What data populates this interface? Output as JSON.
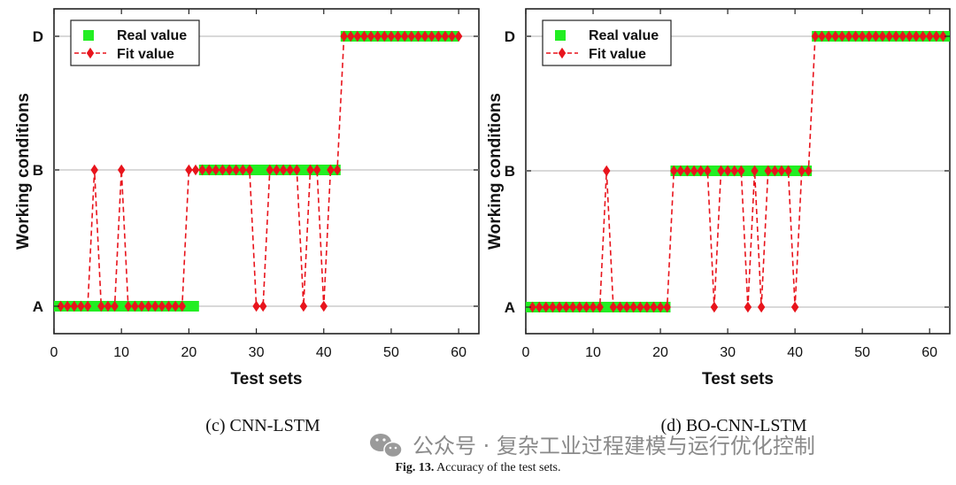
{
  "chart_data": [
    {
      "type": "line",
      "panel_caption": "(c) CNN-LSTM",
      "xlabel": "Test sets",
      "ylabel": "Working conditions",
      "xlim": [
        0,
        63
      ],
      "xticks": [
        "0",
        "10",
        "20",
        "30",
        "40",
        "50",
        "60"
      ],
      "ycategories": [
        "A",
        "B",
        "D"
      ],
      "legend": {
        "real": "Real value",
        "fit": "Fit value",
        "placement": "top-left"
      },
      "colors": {
        "real": "#22ee22",
        "fit": "#e8141c",
        "grid": "#d9d9d9"
      },
      "real": [
        {
          "x_start": 0,
          "x_end": 21.5,
          "class": "A"
        },
        {
          "x_start": 21.5,
          "x_end": 42.5,
          "class": "B"
        },
        {
          "x_start": 42.5,
          "x_end": 60,
          "class": "D"
        }
      ],
      "x_start": 1,
      "fit": [
        "A",
        "A",
        "A",
        "A",
        "A",
        "B",
        "A",
        "A",
        "A",
        "B",
        "A",
        "A",
        "A",
        "A",
        "A",
        "A",
        "A",
        "A",
        "A",
        "B",
        "B",
        "B",
        "B",
        "B",
        "B",
        "B",
        "B",
        "B",
        "B",
        "A",
        "A",
        "B",
        "B",
        "B",
        "B",
        "B",
        "A",
        "B",
        "B",
        "A",
        "B",
        "B",
        "D",
        "D",
        "D",
        "D",
        "D",
        "D",
        "D",
        "D",
        "D",
        "D",
        "D",
        "D",
        "D",
        "D",
        "D",
        "D",
        "D",
        "D"
      ]
    },
    {
      "type": "line",
      "panel_caption": "(d) BO-CNN-LSTM",
      "xlabel": "Test sets",
      "ylabel": "Working conditions",
      "xlim": [
        0,
        63
      ],
      "xticks": [
        "0",
        "10",
        "20",
        "30",
        "40",
        "50",
        "60"
      ],
      "ycategories": [
        "A",
        "B",
        "D"
      ],
      "legend": {
        "real": "Real value",
        "fit": "Fit value",
        "placement": "top-left"
      },
      "colors": {
        "real": "#22ee22",
        "fit": "#e8141c",
        "grid": "#d9d9d9"
      },
      "real": [
        {
          "x_start": 0,
          "x_end": 21.5,
          "class": "A"
        },
        {
          "x_start": 21.5,
          "x_end": 42.5,
          "class": "B"
        },
        {
          "x_start": 42.5,
          "x_end": 63,
          "class": "D"
        }
      ],
      "x_start": 1,
      "fit": [
        "A",
        "A",
        "A",
        "A",
        "A",
        "A",
        "A",
        "A",
        "A",
        "A",
        "A",
        "B",
        "A",
        "A",
        "A",
        "A",
        "A",
        "A",
        "A",
        "A",
        "A",
        "B",
        "B",
        "B",
        "B",
        "B",
        "B",
        "A",
        "B",
        "B",
        "B",
        "B",
        "A",
        "B",
        "A",
        "B",
        "B",
        "B",
        "B",
        "A",
        "B",
        "B",
        "D",
        "D",
        "D",
        "D",
        "D",
        "D",
        "D",
        "D",
        "D",
        "D",
        "D",
        "D",
        "D",
        "D",
        "D",
        "D",
        "D",
        "D",
        "D",
        "D"
      ]
    }
  ],
  "figure": {
    "caption_label": "Fig. 13.",
    "caption_text": "Accuracy of the test sets."
  },
  "watermark": {
    "text": "公众号 · 复杂工业过程建模与运行优化控制"
  }
}
